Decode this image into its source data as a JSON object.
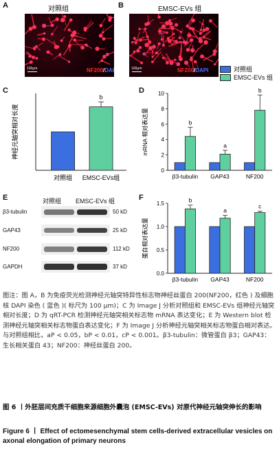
{
  "panels": {
    "A": {
      "letter": "A",
      "title": "对照组",
      "stain_nf": "NF200",
      "stain_sep": "/",
      "stain_dapi": "DAPI",
      "scale": "100μm"
    },
    "B": {
      "letter": "B",
      "title": "EMSC-EVs 组",
      "stain_nf": "NF200",
      "stain_sep": "/",
      "stain_dapi": "DAPI",
      "scale": "100μm"
    },
    "C": {
      "letter": "C"
    },
    "D": {
      "letter": "D"
    },
    "E": {
      "letter": "E"
    },
    "F": {
      "letter": "F"
    }
  },
  "legend": {
    "control": "对照组",
    "evs": "EMSC-EVs 组"
  },
  "colors": {
    "control": "#3b6fe0",
    "evs": "#5fcf9f",
    "fluorescence": "#ff1e3c"
  },
  "chart_data": [
    {
      "type": "bar",
      "panel": "C",
      "categories": [
        "对照组",
        "EMSC-EVs组"
      ],
      "values": [
        1.0,
        1.65
      ],
      "errors": [
        0,
        0.13
      ],
      "sig": [
        "",
        "b"
      ],
      "ylabel": "神经元轴突相对长度",
      "ylim": [
        0,
        2
      ],
      "yticks": []
    },
    {
      "type": "bar",
      "panel": "D",
      "categories": [
        "β3-tubulin",
        "GAP43",
        "NF200"
      ],
      "series": [
        {
          "name": "对照组",
          "values": [
            1.0,
            1.0,
            1.0
          ],
          "errors": [
            0,
            0,
            0
          ]
        },
        {
          "name": "EMSC-EVs 组",
          "values": [
            4.4,
            2.1,
            7.8
          ],
          "errors": [
            1.2,
            0.5,
            2.0
          ],
          "sig": [
            "b",
            "a",
            "b"
          ]
        }
      ],
      "ylabel": "mRNA 相对表达量",
      "ylim": [
        0,
        10
      ],
      "yticks": [
        "0",
        "2",
        "4",
        "6",
        "8",
        "10"
      ]
    },
    {
      "type": "bar",
      "panel": "F",
      "categories": [
        "β3-tubulin",
        "GAP43",
        "NF200"
      ],
      "series": [
        {
          "name": "对照组",
          "values": [
            1.0,
            1.0,
            1.0
          ],
          "errors": [
            0,
            0,
            0
          ]
        },
        {
          "name": "EMSC-EVs 组",
          "values": [
            1.38,
            1.18,
            1.3
          ],
          "errors": [
            0.08,
            0.06,
            0.03
          ],
          "sig": [
            "b",
            "a",
            "c"
          ]
        }
      ],
      "ylabel": "蛋白相对表达量",
      "ylim": [
        0,
        1.5
      ],
      "yticks": [
        "0.0",
        "0.5",
        "1.0",
        "1.5"
      ]
    }
  ],
  "western": {
    "headers": [
      "对照组",
      "EMSC-EVs 组"
    ],
    "rows": [
      {
        "name": "β3-tubulin",
        "kd": "50 kD"
      },
      {
        "name": "GAP43",
        "kd": "25 kD"
      },
      {
        "name": "NF200",
        "kd": "112 kD"
      },
      {
        "name": "GAPDH",
        "kd": "37 kD"
      }
    ]
  },
  "caption": {
    "text": "图注：图 A，B 为免疫荧光检测神经元轴突特异性标志物神经丝蛋白 200(NF200，红色 ) 及细胞核 DAPI 染色 ( 蓝色 )( 标尺为 100 μm)；C 为 Image J 分析对照组和 EMSC-EVs 组神经元轴突相对长度；D 为 qRT-PCR 检测神经元轴突相关标志物 mRNA 表达变化；E 为 Western blot 检测神经元轴突相关标志物蛋白表达变化；F 为 Image J 分析神经元轴突相关标志物蛋白相对表达。与对照组相比，aP < 0.05，bP < 0.01，cP < 0.001。β3-tubulin：微管蛋白 β3；GAP43：生长相关蛋白 43；NF200：神经丝蛋白 200。",
    "title_zh": "图 6 丨外胚层间充质干细胞来源细胞外囊泡 (EMSC-EVs) 对原代神经元轴突伸长的影响",
    "title_en": "Figure 6 丨 Effect of ectomesenchymal stem cells-derived extracellular vesicles on axonal elongation of primary neurons"
  }
}
